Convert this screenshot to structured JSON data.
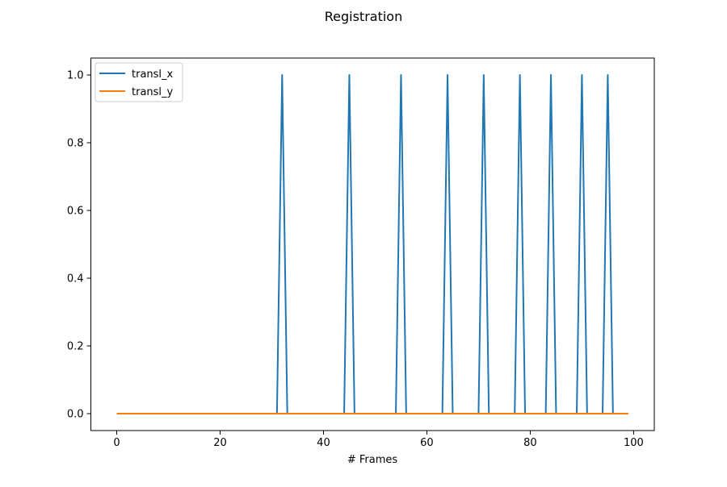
{
  "chart_data": {
    "type": "line",
    "title": "Registration",
    "xlabel": "# Frames",
    "ylabel": "",
    "xlim": [
      -5,
      104
    ],
    "ylim": [
      -0.05,
      1.05
    ],
    "xticks": [
      0,
      20,
      40,
      60,
      80,
      100
    ],
    "yticks": [
      0.0,
      0.2,
      0.4,
      0.6,
      0.8,
      1.0
    ],
    "xtick_labels": [
      "0",
      "20",
      "40",
      "60",
      "80",
      "100"
    ],
    "ytick_labels": [
      "0.0",
      "0.2",
      "0.4",
      "0.6",
      "0.8",
      "1.0"
    ],
    "grid": false,
    "legend_position": "top-left",
    "frames": 100,
    "series": [
      {
        "name": "transl_x",
        "color": "#1f77b4",
        "spike_frames": [
          32,
          45,
          55,
          64,
          71,
          78,
          84,
          90,
          95
        ],
        "spike_value": 1.0,
        "base_value": 0.0
      },
      {
        "name": "transl_y",
        "color": "#ff7f0e",
        "spike_frames": [],
        "spike_value": 0.0,
        "base_value": 0.0
      }
    ]
  }
}
